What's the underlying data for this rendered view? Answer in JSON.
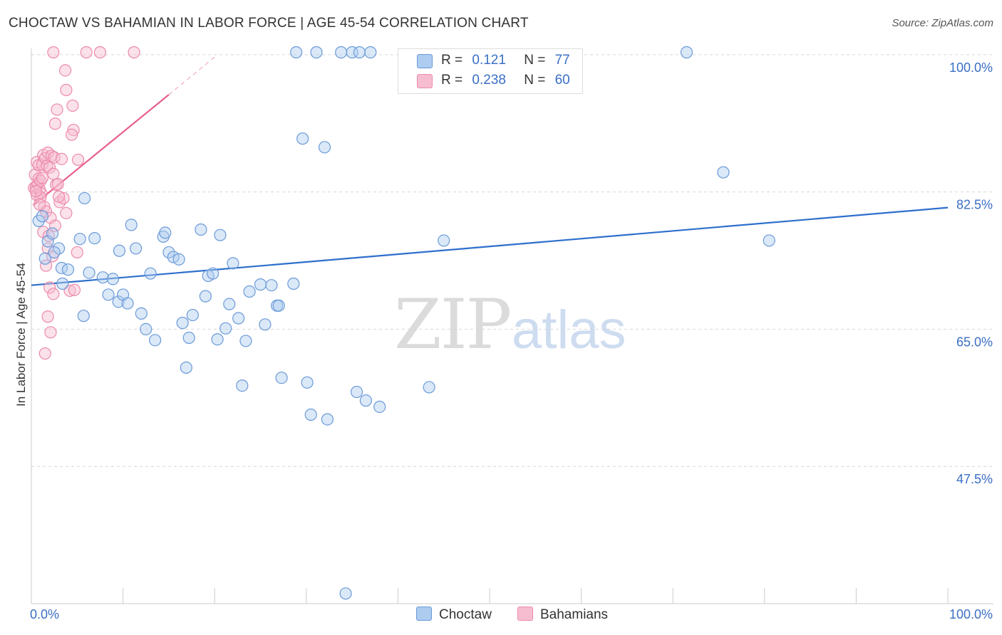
{
  "header": {
    "title": "CHOCTAW VS BAHAMIAN IN LABOR FORCE | AGE 45-54 CORRELATION CHART",
    "source": "Source: ZipAtlas.com"
  },
  "watermark": {
    "zip": "ZIP",
    "atlas": "atlas"
  },
  "legend": {
    "r_label": "R =",
    "n_label": "N =",
    "series": [
      {
        "r": "0.121",
        "n": "77"
      },
      {
        "r": "0.238",
        "n": "60"
      }
    ]
  },
  "bottom_legend": [
    "Choctaw",
    "Bahamians"
  ],
  "colors": {
    "blue_fill": "#aecbf0",
    "blue_stroke": "#6b9ad8",
    "blue_line": "#2d6fcc",
    "pink_fill": "#f6bdd0",
    "pink_stroke": "#ec8aab",
    "pink_line": "#e8608c",
    "tick_text": "#3a6fc4",
    "grid": "#d6d6d6"
  },
  "chart_data": {
    "type": "scatter",
    "title": "CHOCTAW VS BAHAMIAN IN LABOR FORCE | AGE 45-54 CORRELATION CHART",
    "xlabel": "",
    "ylabel": "In Labor Force | Age 45-54",
    "xlim": [
      0,
      100
    ],
    "ylim": [
      30,
      100.8
    ],
    "x_tick_labels": [
      {
        "value": 0,
        "label": "0.0%"
      },
      {
        "value": 100,
        "label": "100.0%"
      }
    ],
    "y_tick_labels": [
      {
        "value": 100,
        "label": "100.0%"
      },
      {
        "value": 82.5,
        "label": "82.5%"
      },
      {
        "value": 65,
        "label": "65.0%"
      },
      {
        "value": 47.5,
        "label": "47.5%"
      }
    ],
    "y_gridlines": [
      100,
      82.5,
      65,
      47.5
    ],
    "x_minor_ticks": [
      10,
      20,
      30,
      40,
      50,
      60,
      70,
      80,
      90
    ],
    "series": [
      {
        "name": "Choctaw",
        "R": 0.121,
        "N": 77,
        "trend": {
          "x": [
            0,
            100
          ],
          "y": [
            70.6,
            80.5
          ]
        },
        "points": [
          [
            0.8,
            78.8
          ],
          [
            1.2,
            79.4
          ],
          [
            1.5,
            74.0
          ],
          [
            1.8,
            76.2
          ],
          [
            2.3,
            77.2
          ],
          [
            3.0,
            75.3
          ],
          [
            3.3,
            72.8
          ],
          [
            4.0,
            72.6
          ],
          [
            3.4,
            70.8
          ],
          [
            5.3,
            76.5
          ],
          [
            5.8,
            81.7
          ],
          [
            6.3,
            72.2
          ],
          [
            5.7,
            66.7
          ],
          [
            6.9,
            76.6
          ],
          [
            7.8,
            71.6
          ],
          [
            8.4,
            69.4
          ],
          [
            8.9,
            71.4
          ],
          [
            9.5,
            68.5
          ],
          [
            9.6,
            75.0
          ],
          [
            10.0,
            69.4
          ],
          [
            10.5,
            68.3
          ],
          [
            10.9,
            78.3
          ],
          [
            11.4,
            75.3
          ],
          [
            12.0,
            67.0
          ],
          [
            12.5,
            65.0
          ],
          [
            13.0,
            72.1
          ],
          [
            13.5,
            63.6
          ],
          [
            14.4,
            76.8
          ],
          [
            14.6,
            77.3
          ],
          [
            15.0,
            74.8
          ],
          [
            15.5,
            74.2
          ],
          [
            16.1,
            73.9
          ],
          [
            16.5,
            65.8
          ],
          [
            16.9,
            60.1
          ],
          [
            17.2,
            63.9
          ],
          [
            17.6,
            66.8
          ],
          [
            18.5,
            77.7
          ],
          [
            19.0,
            69.2
          ],
          [
            19.3,
            71.8
          ],
          [
            19.8,
            72.1
          ],
          [
            20.3,
            63.7
          ],
          [
            20.6,
            77.0
          ],
          [
            21.2,
            65.1
          ],
          [
            21.6,
            68.2
          ],
          [
            22.0,
            73.4
          ],
          [
            22.6,
            66.4
          ],
          [
            23.0,
            57.8
          ],
          [
            23.4,
            63.5
          ],
          [
            23.8,
            69.8
          ],
          [
            25.0,
            70.7
          ],
          [
            25.5,
            65.6
          ],
          [
            26.2,
            70.6
          ],
          [
            26.8,
            68.0
          ],
          [
            27.0,
            68.0
          ],
          [
            27.3,
            58.8
          ],
          [
            28.6,
            70.8
          ],
          [
            28.9,
            100.3
          ],
          [
            29.6,
            89.3
          ],
          [
            30.1,
            58.2
          ],
          [
            30.5,
            54.1
          ],
          [
            31.1,
            100.3
          ],
          [
            32.0,
            88.2
          ],
          [
            32.3,
            53.5
          ],
          [
            33.8,
            100.3
          ],
          [
            35.0,
            100.3
          ],
          [
            35.5,
            57.0
          ],
          [
            35.8,
            100.3
          ],
          [
            36.5,
            55.9
          ],
          [
            37.0,
            100.3
          ],
          [
            38.0,
            55.1
          ],
          [
            43.4,
            57.6
          ],
          [
            45.0,
            76.3
          ],
          [
            71.5,
            100.3
          ],
          [
            75.5,
            85.0
          ],
          [
            80.5,
            76.3
          ],
          [
            34.3,
            31.3
          ],
          [
            2.5,
            74.8
          ]
        ]
      },
      {
        "name": "Bahamians",
        "R": 0.238,
        "N": 60,
        "trend": {
          "x": [
            0.2,
            15.0
          ],
          "y": [
            80.8,
            94.9
          ]
        },
        "trend_dashed": {
          "x": [
            15.0,
            20.2
          ],
          "y": [
            94.9,
            99.9
          ]
        },
        "points": [
          [
            0.3,
            83.0
          ],
          [
            0.4,
            84.7
          ],
          [
            0.5,
            83.1
          ],
          [
            0.6,
            82.1
          ],
          [
            0.7,
            83.5
          ],
          [
            0.8,
            84.2
          ],
          [
            0.9,
            82.8
          ],
          [
            1.0,
            83.9
          ],
          [
            1.1,
            82.3
          ],
          [
            1.0,
            81.8
          ],
          [
            0.5,
            82.6
          ],
          [
            0.6,
            86.3
          ],
          [
            0.8,
            85.9
          ],
          [
            1.2,
            86.0
          ],
          [
            1.3,
            87.2
          ],
          [
            1.5,
            86.8
          ],
          [
            1.7,
            85.8
          ],
          [
            1.8,
            87.5
          ],
          [
            2.0,
            85.6
          ],
          [
            2.2,
            87.1
          ],
          [
            2.4,
            84.8
          ],
          [
            2.5,
            86.9
          ],
          [
            2.7,
            83.4
          ],
          [
            2.9,
            83.5
          ],
          [
            3.1,
            81.2
          ],
          [
            3.3,
            86.7
          ],
          [
            3.5,
            81.7
          ],
          [
            1.4,
            80.6
          ],
          [
            1.6,
            80.0
          ],
          [
            2.1,
            79.2
          ],
          [
            2.6,
            78.2
          ],
          [
            3.8,
            79.8
          ],
          [
            1.3,
            77.4
          ],
          [
            1.8,
            75.3
          ],
          [
            2.3,
            74.3
          ],
          [
            1.6,
            73.1
          ],
          [
            2.0,
            70.3
          ],
          [
            2.4,
            69.5
          ],
          [
            1.8,
            66.6
          ],
          [
            2.1,
            64.6
          ],
          [
            1.5,
            61.9
          ],
          [
            5.0,
            74.8
          ],
          [
            5.1,
            86.6
          ],
          [
            4.6,
            90.4
          ],
          [
            4.5,
            93.5
          ],
          [
            3.8,
            95.5
          ],
          [
            3.7,
            98.0
          ],
          [
            1.9,
            76.9
          ],
          [
            4.2,
            69.9
          ],
          [
            4.7,
            70.0
          ],
          [
            2.6,
            91.2
          ],
          [
            2.8,
            93.0
          ],
          [
            4.4,
            89.8
          ],
          [
            6.0,
            100.3
          ],
          [
            7.5,
            100.3
          ],
          [
            11.2,
            100.3
          ],
          [
            2.4,
            100.3
          ],
          [
            3.0,
            81.9
          ],
          [
            1.2,
            84.3
          ],
          [
            0.9,
            80.9
          ]
        ]
      }
    ]
  }
}
